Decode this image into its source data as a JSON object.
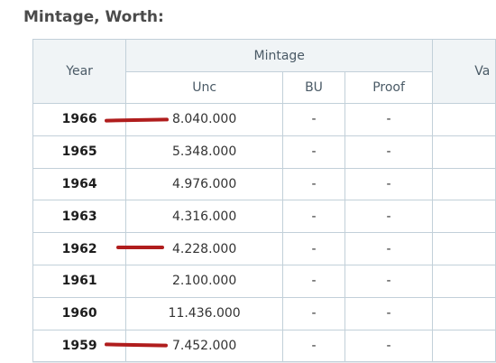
{
  "title": "Mintage, Worth:",
  "table": {
    "year_header": "Year",
    "mintage_header": "Mintage",
    "value_header_partial": "Va",
    "sub_headers": [
      "Unc",
      "BU",
      "Proof"
    ],
    "rows": [
      {
        "year": "1966",
        "unc": "8.040.000",
        "bu": "-",
        "proof": "-",
        "value": ""
      },
      {
        "year": "1965",
        "unc": "5.348.000",
        "bu": "-",
        "proof": "-",
        "value": ""
      },
      {
        "year": "1964",
        "unc": "4.976.000",
        "bu": "-",
        "proof": "-",
        "value": ""
      },
      {
        "year": "1963",
        "unc": "4.316.000",
        "bu": "-",
        "proof": "-",
        "value": ""
      },
      {
        "year": "1962",
        "unc": "4.228.000",
        "bu": "-",
        "proof": "-",
        "value": ""
      },
      {
        "year": "1961",
        "unc": "2.100.000",
        "bu": "-",
        "proof": "-",
        "value": ""
      },
      {
        "year": "1960",
        "unc": "11.436.000",
        "bu": "-",
        "proof": "-",
        "value": ""
      },
      {
        "year": "1959",
        "unc": "7.452.000",
        "bu": "-",
        "proof": "-",
        "value": ""
      }
    ]
  },
  "annotation_color": "#b01d1d"
}
